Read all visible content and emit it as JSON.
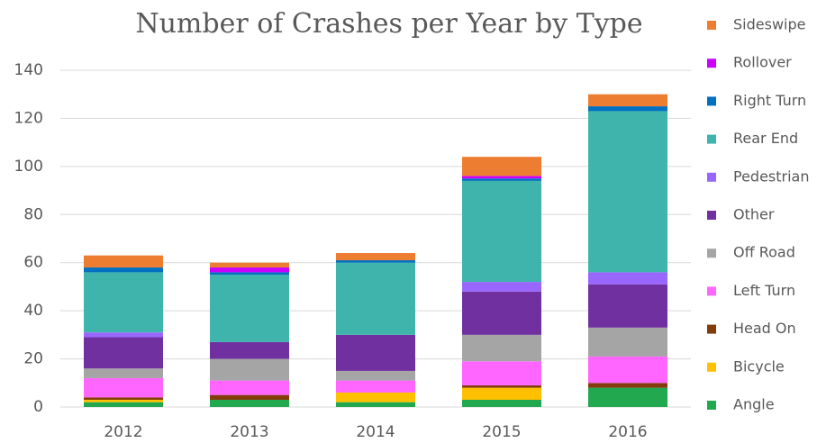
{
  "chart_data": {
    "type": "stacked_bar",
    "title": "Number of Crashes per Year by Type",
    "categories": [
      "2012",
      "2013",
      "2014",
      "2015",
      "2016"
    ],
    "series": [
      {
        "name": "Angle",
        "color": "#22a84f",
        "values": [
          2,
          3,
          2,
          3,
          8
        ]
      },
      {
        "name": "Bicycle",
        "color": "#ffc000",
        "values": [
          1,
          0,
          4,
          5,
          0
        ]
      },
      {
        "name": "Head On",
        "color": "#843c0c",
        "values": [
          1,
          2,
          0,
          1,
          2
        ]
      },
      {
        "name": "Left Turn",
        "color": "#ff66ff",
        "values": [
          8,
          6,
          5,
          10,
          11
        ]
      },
      {
        "name": "Off Road",
        "color": "#a5a5a5",
        "values": [
          4,
          9,
          4,
          11,
          12
        ]
      },
      {
        "name": "Other",
        "color": "#7030a0",
        "values": [
          13,
          7,
          15,
          18,
          18
        ]
      },
      {
        "name": "Pedestrian",
        "color": "#9966ff",
        "values": [
          2,
          0,
          0,
          4,
          5
        ]
      },
      {
        "name": "Rear End",
        "color": "#3fb4ad",
        "values": [
          25,
          28,
          30,
          42,
          67
        ]
      },
      {
        "name": "Right Turn",
        "color": "#0070c0",
        "values": [
          2,
          1,
          1,
          1,
          2
        ]
      },
      {
        "name": "Rollover",
        "color": "#cc00ff",
        "values": [
          0,
          2,
          0,
          1,
          0
        ]
      },
      {
        "name": "Sideswipe",
        "color": "#ed7d31",
        "values": [
          5,
          2,
          3,
          8,
          5
        ]
      }
    ],
    "ylim": [
      0,
      140
    ],
    "yticks": [
      0,
      20,
      40,
      60,
      80,
      100,
      120,
      140
    ],
    "grid": true,
    "legend": "right"
  }
}
